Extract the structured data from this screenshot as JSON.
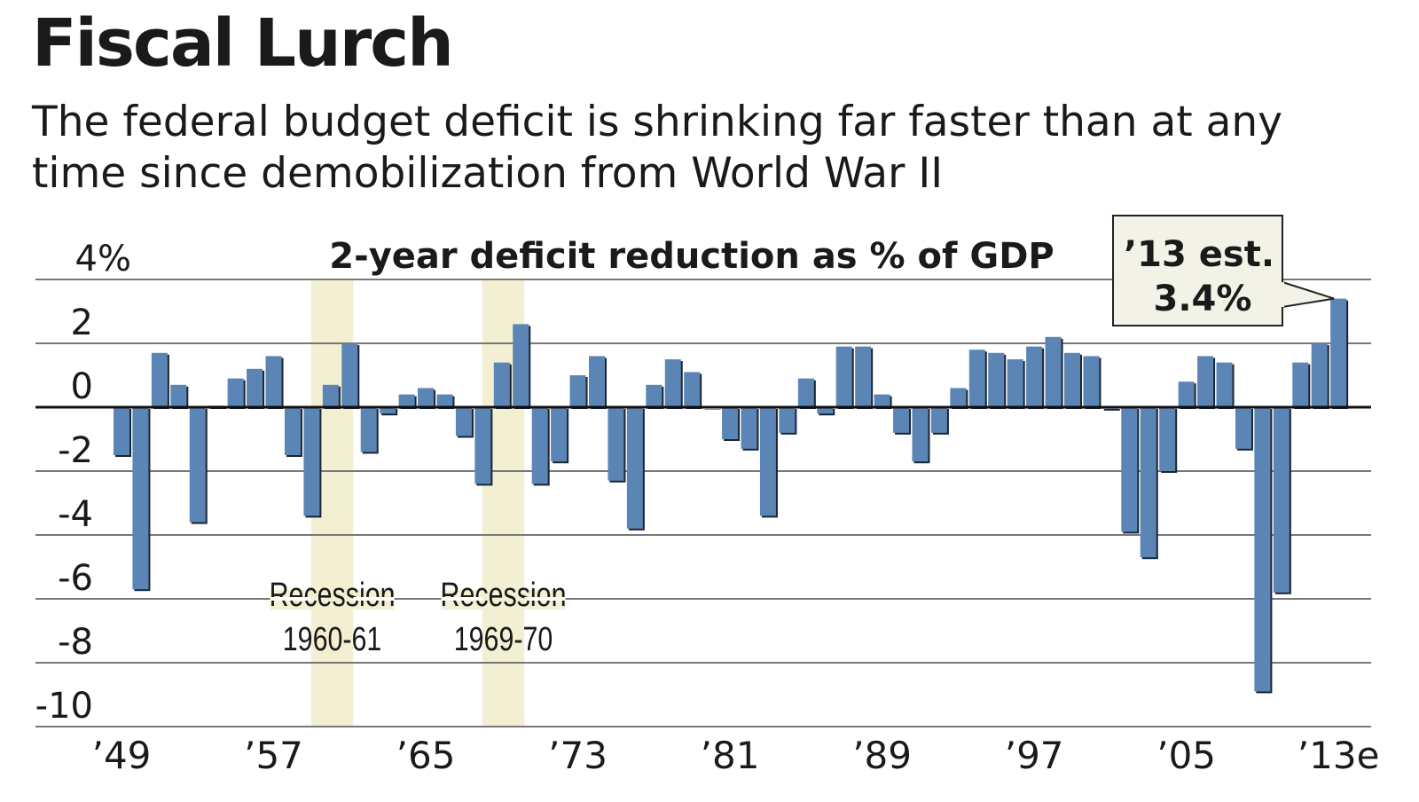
{
  "title": "Fiscal Lurch",
  "subtitle_lines": [
    "The federal budget deficit is shrinking far faster than at any",
    "time since demobilization from World War II"
  ],
  "chart_data": {
    "type": "bar",
    "title": "2-year deficit reduction as % of GDP",
    "xlabel": "",
    "ylabel": "",
    "ylim": [
      -10,
      4
    ],
    "grid": true,
    "bar_color": "#5b85b5",
    "shade_color": "#f3efd2",
    "y_ticks": [
      {
        "value": 4,
        "label": "4%"
      },
      {
        "value": 2,
        "label": "2"
      },
      {
        "value": 0,
        "label": "0"
      },
      {
        "value": -2,
        "label": "-2"
      },
      {
        "value": -4,
        "label": "-4"
      },
      {
        "value": -6,
        "label": "-6"
      },
      {
        "value": -8,
        "label": "-8"
      },
      {
        "value": -10,
        "label": "-10"
      }
    ],
    "x_ticks": [
      {
        "year": 1949,
        "label": "’49"
      },
      {
        "year": 1957,
        "label": "’57"
      },
      {
        "year": 1965,
        "label": "’65"
      },
      {
        "year": 1973,
        "label": "’73"
      },
      {
        "year": 1981,
        "label": "’81"
      },
      {
        "year": 1989,
        "label": "’89"
      },
      {
        "year": 1997,
        "label": "’97"
      },
      {
        "year": 2005,
        "label": "’05"
      },
      {
        "year": 2013,
        "label": "’13e"
      }
    ],
    "x": [
      1949,
      1950,
      1951,
      1952,
      1953,
      1954,
      1955,
      1956,
      1957,
      1958,
      1959,
      1960,
      1961,
      1962,
      1963,
      1964,
      1965,
      1966,
      1967,
      1968,
      1969,
      1970,
      1971,
      1972,
      1973,
      1974,
      1975,
      1976,
      1977,
      1978,
      1979,
      1980,
      1981,
      1982,
      1983,
      1984,
      1985,
      1986,
      1987,
      1988,
      1989,
      1990,
      1991,
      1992,
      1993,
      1994,
      1995,
      1996,
      1997,
      1998,
      1999,
      2000,
      2001,
      2002,
      2003,
      2004,
      2005,
      2006,
      2007,
      2008,
      2009,
      2010,
      2011,
      2012,
      2013
    ],
    "values": [
      -1.5,
      -5.7,
      1.7,
      0.7,
      -3.6,
      0.05,
      0.9,
      1.2,
      1.6,
      -1.5,
      -3.4,
      0.7,
      2.0,
      -1.4,
      -0.2,
      0.4,
      0.6,
      0.4,
      -0.9,
      -2.4,
      1.4,
      2.6,
      -2.4,
      -1.7,
      1.0,
      1.6,
      -2.3,
      -3.8,
      0.7,
      1.5,
      1.1,
      0.0,
      -1.0,
      -1.3,
      -3.4,
      -0.8,
      0.9,
      -0.2,
      1.9,
      1.9,
      0.4,
      -0.8,
      -1.7,
      -0.8,
      0.6,
      1.8,
      1.7,
      1.5,
      1.9,
      2.2,
      1.7,
      1.6,
      -0.05,
      -3.9,
      -4.7,
      -2.0,
      0.8,
      1.6,
      1.4,
      -1.3,
      -8.9,
      -5.8,
      1.4,
      2.0,
      3.4
    ],
    "shaded_periods": [
      {
        "start": 1960,
        "end": 1961,
        "label_line1": "Recession",
        "label_line2": "1960-61"
      },
      {
        "start": 1969,
        "end": 1970,
        "label_line1": "Recession",
        "label_line2": "1969-70"
      }
    ],
    "callout": {
      "year": 2013,
      "line1": "’13 est.",
      "line2": "3.4%"
    }
  }
}
